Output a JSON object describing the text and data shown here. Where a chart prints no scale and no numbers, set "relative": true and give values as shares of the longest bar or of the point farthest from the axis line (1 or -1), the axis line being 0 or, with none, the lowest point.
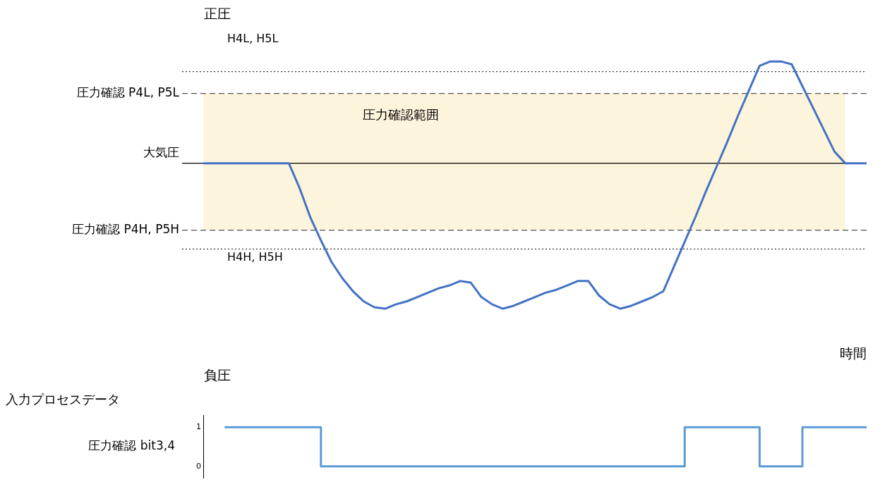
{
  "chart_data": [
    {
      "type": "line",
      "relative": true,
      "xlabel": "時間",
      "grid": false,
      "legend": false,
      "tick_labels": false,
      "categories": [
        null,
        null,
        null,
        null,
        null,
        null,
        null,
        null,
        null,
        null,
        null,
        null,
        null,
        null,
        null,
        null,
        null,
        null,
        null,
        null,
        null,
        null,
        null,
        null,
        null,
        null,
        null,
        null,
        null,
        null,
        null,
        null,
        null,
        null,
        null,
        null,
        null,
        null,
        null,
        null,
        null,
        null,
        null,
        null,
        null,
        null,
        null,
        null,
        null,
        null,
        null,
        null,
        null,
        null,
        null,
        null,
        null,
        null,
        null,
        null,
        null,
        null,
        null
      ],
      "series": [
        {
          "color": "#4472c4",
          "values": [
            0,
            0,
            0,
            0,
            0,
            0,
            0,
            0,
            0,
            -0.17,
            -0.37,
            -0.53,
            -0.68,
            -0.79,
            -0.88,
            -0.95,
            -0.99,
            -1.0,
            -0.97,
            -0.95,
            -0.92,
            -0.89,
            -0.86,
            -0.84,
            -0.81,
            -0.82,
            -0.92,
            -0.97,
            -1.0,
            -0.98,
            -0.95,
            -0.92,
            -0.89,
            -0.87,
            -0.84,
            -0.81,
            -0.81,
            -0.91,
            -0.97,
            -1.0,
            -0.98,
            -0.95,
            -0.92,
            -0.88,
            -0.71,
            -0.54,
            -0.37,
            -0.19,
            -0.02,
            0.15,
            0.33,
            0.5,
            0.67,
            0.7,
            0.7,
            0.68,
            0.53,
            0.38,
            0.23,
            0.08,
            0,
            0,
            0
          ]
        }
      ],
      "ref_lines": [
        {
          "axis": "y",
          "value": 0,
          "label": "大気圧",
          "color": "#000000",
          "line_style": "solid"
        },
        {
          "axis": "y",
          "value": 0.48,
          "label": "圧力確認 P4L, P5L",
          "color": "#555555",
          "line_style": "dashed"
        },
        {
          "axis": "y",
          "value": -0.46,
          "label": "圧力確認 P4H, P5H",
          "color": "#555555",
          "line_style": "dashed"
        },
        {
          "axis": "y",
          "value": 0.63,
          "color": "#333333",
          "line_style": "dotted"
        },
        {
          "axis": "y",
          "value": -0.59,
          "color": "#333333",
          "line_style": "dotted"
        }
      ],
      "bands": [
        {
          "axis": "y",
          "from": -0.46,
          "to": 0.48,
          "label": "圧力確認範囲",
          "color": "#fdf4dc"
        }
      ],
      "annotations": [
        "正圧",
        "負圧",
        "H4L, H5L",
        "H4H, H5H"
      ]
    },
    {
      "type": "step",
      "title": "入力プロセスデータ",
      "ylabel": "圧力確認 bit3,4",
      "grid": false,
      "legend": false,
      "tick_labels": "y",
      "ylim": [
        -0.3,
        1.3
      ],
      "yticks": [
        0,
        1
      ],
      "categories": [
        null,
        null,
        null,
        null,
        null,
        null,
        null,
        null,
        null,
        null,
        null,
        null,
        null,
        null,
        null,
        null,
        null,
        null,
        null,
        null,
        null,
        null,
        null,
        null,
        null,
        null,
        null,
        null,
        null,
        null,
        null,
        null,
        null,
        null,
        null,
        null,
        null,
        null,
        null,
        null,
        null,
        null,
        null,
        null,
        null,
        null,
        null,
        null,
        null,
        null,
        null,
        null,
        null,
        null,
        null,
        null,
        null,
        null,
        null,
        null,
        null,
        null,
        null
      ],
      "series": [
        {
          "color": "#5b9bd5",
          "values": [
            null,
            null,
            1,
            1,
            1,
            1,
            1,
            1,
            1,
            1,
            1,
            0,
            0,
            0,
            0,
            0,
            0,
            0,
            0,
            0,
            0,
            0,
            0,
            0,
            0,
            0,
            0,
            0,
            0,
            0,
            0,
            0,
            0,
            0,
            0,
            0,
            0,
            0,
            0,
            0,
            0,
            0,
            0,
            0,
            0,
            1,
            1,
            1,
            1,
            1,
            1,
            1,
            0,
            0,
            0,
            0,
            1,
            1,
            1,
            1,
            1,
            1,
            1
          ]
        }
      ]
    }
  ]
}
